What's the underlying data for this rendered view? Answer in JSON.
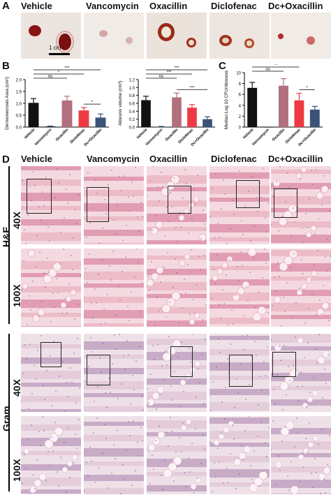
{
  "panels": {
    "a": "A",
    "b": "B",
    "c": "C",
    "d": "D"
  },
  "groups": [
    "Vehicle",
    "Vancomycin",
    "Oxacillin",
    "Diclofenac",
    "Dc+Oxacillin"
  ],
  "scale_label": "1 cm",
  "row_labels": {
    "stain_top": "H&E",
    "stain_bottom": "Gram",
    "mag_40": "40X",
    "mag_100": "100X"
  },
  "colors": {
    "vehicle": "#111111",
    "vancomycin": "#2b3b57",
    "oxacillin": "#b26f7e",
    "diclofenac": "#ee3a43",
    "dc_oxacillin": "#3a5377"
  },
  "chart_data": [
    {
      "type": "bar",
      "ylabel": "Dermonecrosis Area (cm²)",
      "categories": [
        "Vehicle",
        "Vancomycin",
        "Oxacillin",
        "Diclofenac",
        "Dc+Oxacillin"
      ],
      "values": [
        1.02,
        0.03,
        1.12,
        0.7,
        0.4
      ],
      "errors": [
        0.18,
        0.01,
        0.18,
        0.12,
        0.15
      ],
      "ylim": [
        0,
        2.0
      ],
      "yticks": [
        "0.0",
        "0.5",
        "1.0",
        "1.5",
        "2.0"
      ],
      "significance": [
        "***",
        "*",
        "ns",
        "*"
      ]
    },
    {
      "type": "bar",
      "ylabel": "Abscess volume (cm³)",
      "categories": [
        "Vehicle",
        "Vancomycin",
        "Oxacillin",
        "Diclofenac",
        "Dc+Oxacillin"
      ],
      "values": [
        0.68,
        0.01,
        0.75,
        0.49,
        0.2
      ],
      "errors": [
        0.1,
        0.005,
        0.11,
        0.08,
        0.06
      ],
      "ylim": [
        0,
        1.2
      ],
      "yticks": [
        "0.0",
        "0.2",
        "0.4",
        "0.6",
        "0.8",
        "1.0",
        "1.2"
      ],
      "significance": [
        "***",
        "***",
        "ns",
        "***"
      ]
    },
    {
      "type": "bar",
      "ylabel": "Median Log 10 CFU/Abscess",
      "categories": [
        "Vehicle",
        "Vancomycin",
        "Oxacillin",
        "Diclofenac",
        "Dc+Oxacillin"
      ],
      "values": [
        7.2,
        0.0,
        7.6,
        4.9,
        3.2
      ],
      "errors": [
        1.0,
        0.0,
        1.3,
        1.3,
        0.6
      ],
      "ylim": [
        0,
        10
      ],
      "yticks": [
        "0",
        "2",
        "4",
        "6",
        "8",
        "10"
      ],
      "significance": [
        "***",
        "**",
        "ns",
        "*"
      ]
    }
  ]
}
